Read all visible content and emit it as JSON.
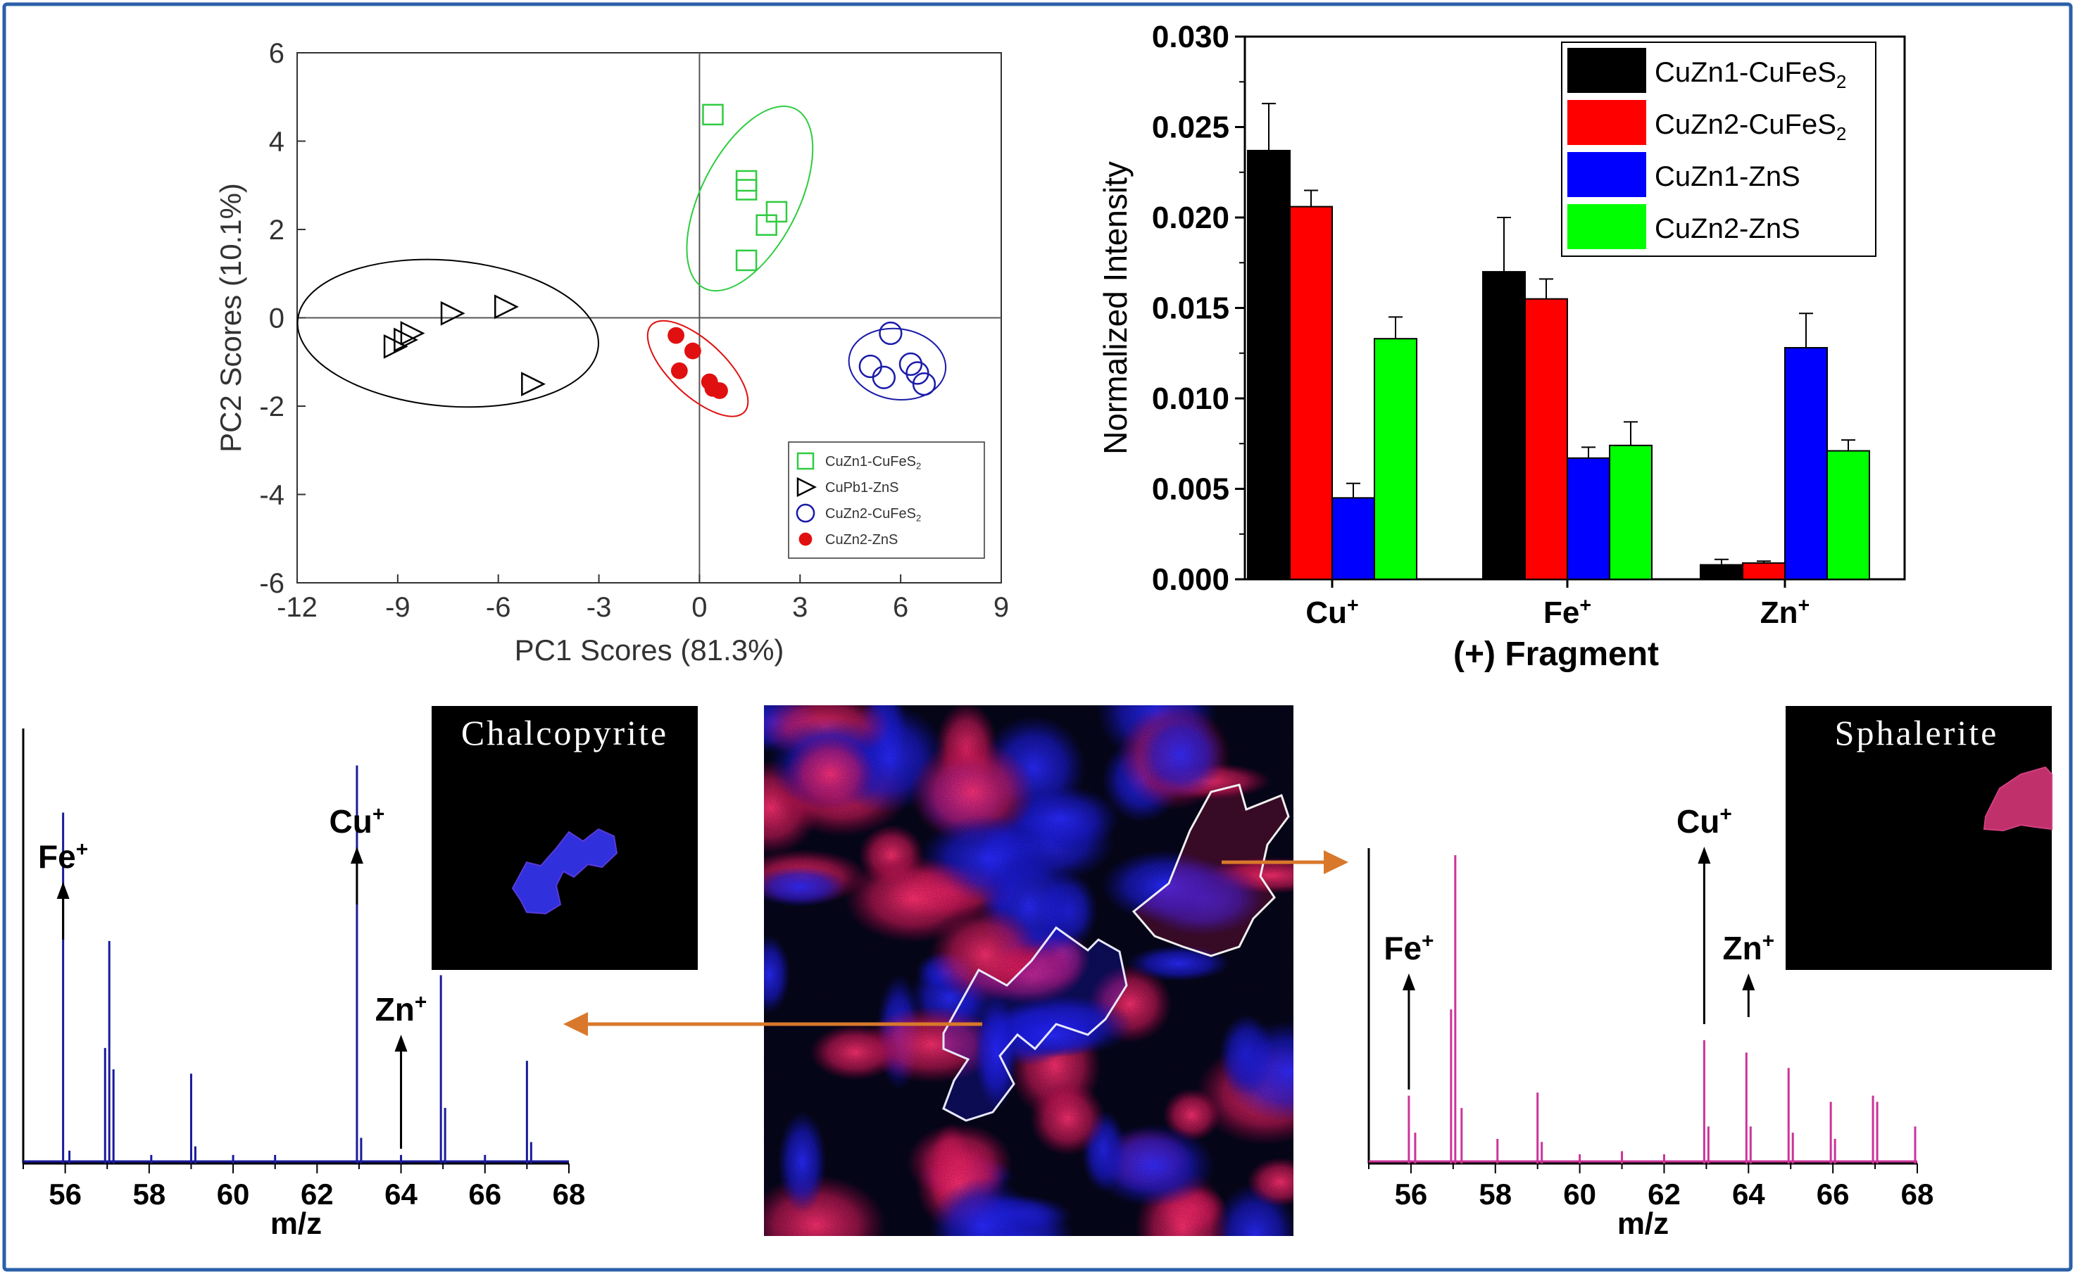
{
  "colors": {
    "frame": "#2b5fa8",
    "arrow": "#d9782b",
    "black": "#000000",
    "red": "#ff0000",
    "blue": "#0000ff",
    "green": "#00ff00",
    "pca_green": "#2ecc40",
    "pca_blue": "#1a1aaa",
    "pca_red": "#e01010",
    "spec_blue": "#1a1a9a",
    "spec_pink": "#cc3399"
  },
  "chart_data": [
    {
      "id": "pca",
      "type": "scatter",
      "xlabel": "PC1 Scores (81.3%)",
      "ylabel": "PC2 Scores (10.1%)",
      "xlim": [
        -12,
        9
      ],
      "ylim": [
        -6,
        6
      ],
      "xticks": [
        "-12",
        "-9",
        "-6",
        "-3",
        "0",
        "3",
        "6",
        "9"
      ],
      "yticks": [
        "6",
        "4",
        "2",
        "0",
        "-2",
        "-4",
        "-6"
      ],
      "legend_position": "bottom-right",
      "series": [
        {
          "name": "CuZn1-CuFeS",
          "subscript": "2",
          "marker": "square",
          "color": "#2ecc40",
          "points": [
            [
              0.4,
              4.6
            ],
            [
              1.4,
              3.1
            ],
            [
              1.4,
              2.9
            ],
            [
              2.3,
              2.4
            ],
            [
              2.0,
              2.1
            ],
            [
              1.4,
              1.3
            ]
          ],
          "ellipse": {
            "cx": 1.5,
            "cy": 2.7,
            "rx": 3.0,
            "ry": 1.1,
            "angle": 63
          }
        },
        {
          "name": "CuPb1-ZnS",
          "subscript": "",
          "marker": "triangle-right",
          "color": "#000000",
          "points": [
            [
              -5.8,
              0.25
            ],
            [
              -7.4,
              0.1
            ],
            [
              -8.6,
              -0.35
            ],
            [
              -8.8,
              -0.5
            ],
            [
              -9.1,
              -0.65
            ],
            [
              -5.0,
              -1.5
            ]
          ],
          "ellipse": {
            "cx": -7.5,
            "cy": -0.35,
            "rx": 4.5,
            "ry": 1.65,
            "angle": -5
          }
        },
        {
          "name": "CuZn2-CuFeS",
          "subscript": "2",
          "marker": "circle",
          "color": "#1a1aaa",
          "points": [
            [
              5.7,
              -0.35
            ],
            [
              5.1,
              -1.1
            ],
            [
              5.5,
              -1.35
            ],
            [
              6.3,
              -1.05
            ],
            [
              6.5,
              -1.25
            ],
            [
              6.7,
              -1.5
            ]
          ],
          "ellipse": {
            "cx": 5.9,
            "cy": -1.05,
            "rx": 1.45,
            "ry": 0.8,
            "angle": -8
          }
        },
        {
          "name": "CuZn2-ZnS",
          "subscript": "",
          "marker": "dot",
          "color": "#e01010",
          "points": [
            [
              -0.7,
              -0.4
            ],
            [
              -0.2,
              -0.75
            ],
            [
              -0.6,
              -1.2
            ],
            [
              0.3,
              -1.45
            ],
            [
              0.6,
              -1.65
            ],
            [
              0.4,
              -1.6
            ]
          ],
          "ellipse": {
            "cx": -0.05,
            "cy": -1.15,
            "rx": 1.9,
            "ry": 0.62,
            "angle": -43
          }
        }
      ]
    },
    {
      "id": "bars",
      "type": "bar",
      "ylabel": "Normalized Intensity",
      "xlabel": "(+) Fragment",
      "categories": [
        "Cu",
        "Fe",
        "Zn"
      ],
      "category_sup": "+",
      "ylim": [
        0,
        0.03
      ],
      "yticks": [
        "0.030",
        "0.025",
        "0.020",
        "0.015",
        "0.010",
        "0.005",
        "0.000"
      ],
      "legend_position": "top-right",
      "series": [
        {
          "name": "CuZn1-CuFeS",
          "subscript": "2",
          "color": "#000000",
          "values": [
            0.0237,
            0.017,
            0.0008
          ],
          "errors": [
            0.0026,
            0.003,
            0.0003
          ]
        },
        {
          "name": "CuZn2-CuFeS",
          "subscript": "2",
          "color": "#ff0000",
          "values": [
            0.0206,
            0.0155,
            0.0009
          ],
          "errors": [
            0.0009,
            0.0011,
            0.0001
          ]
        },
        {
          "name": "CuZn1-ZnS",
          "subscript": "",
          "color": "#0000ff",
          "values": [
            0.0045,
            0.0067,
            0.0128
          ],
          "errors": [
            0.0008,
            0.0006,
            0.0019
          ]
        },
        {
          "name": "CuZn2-ZnS",
          "subscript": "",
          "color": "#00ff00",
          "values": [
            0.0133,
            0.0074,
            0.0071
          ],
          "errors": [
            0.0012,
            0.0013,
            0.0006
          ]
        }
      ]
    },
    {
      "id": "spectrum_left",
      "type": "line",
      "title": "Chalcopyrite",
      "xlabel": "m/z",
      "xlim": [
        55,
        68
      ],
      "xticks": [
        "56",
        "58",
        "60",
        "62",
        "64",
        "66",
        "68"
      ],
      "color": "#1a1a9a",
      "peaks": [
        [
          55.95,
          0.82
        ],
        [
          56.1,
          0.03
        ],
        [
          56.95,
          0.27
        ],
        [
          57.05,
          0.52
        ],
        [
          57.15,
          0.22
        ],
        [
          58.05,
          0.02
        ],
        [
          59.0,
          0.21
        ],
        [
          59.1,
          0.04
        ],
        [
          60.0,
          0.02
        ],
        [
          61.0,
          0.02
        ],
        [
          62.95,
          0.93
        ],
        [
          63.05,
          0.06
        ],
        [
          64.0,
          0.02
        ],
        [
          64.95,
          0.44
        ],
        [
          65.05,
          0.13
        ],
        [
          66.0,
          0.02
        ],
        [
          67.0,
          0.24
        ],
        [
          67.1,
          0.05
        ]
      ],
      "annotations": [
        {
          "label": "Fe",
          "sup": "+",
          "x": 55.95
        },
        {
          "label": "Cu",
          "sup": "+",
          "x": 62.95
        },
        {
          "label": "Zn",
          "sup": "+",
          "x": 64.0
        }
      ]
    },
    {
      "id": "spectrum_right",
      "type": "line",
      "title": "Sphalerite",
      "xlabel": "m/z",
      "xlim": [
        55,
        68
      ],
      "xticks": [
        "56",
        "58",
        "60",
        "62",
        "64",
        "66",
        "68"
      ],
      "color": "#cc3399",
      "peaks": [
        [
          55.95,
          0.22
        ],
        [
          56.1,
          0.1
        ],
        [
          56.95,
          0.5
        ],
        [
          57.05,
          1.0
        ],
        [
          57.2,
          0.18
        ],
        [
          58.05,
          0.08
        ],
        [
          59.0,
          0.23
        ],
        [
          59.1,
          0.07
        ],
        [
          60.0,
          0.03
        ],
        [
          61.0,
          0.04
        ],
        [
          62.0,
          0.03
        ],
        [
          62.95,
          0.4
        ],
        [
          63.05,
          0.12
        ],
        [
          63.95,
          0.36
        ],
        [
          64.05,
          0.12
        ],
        [
          64.95,
          0.31
        ],
        [
          65.05,
          0.1
        ],
        [
          65.95,
          0.2
        ],
        [
          66.05,
          0.08
        ],
        [
          66.95,
          0.22
        ],
        [
          67.05,
          0.2
        ],
        [
          67.95,
          0.12
        ]
      ],
      "annotations": [
        {
          "label": "Fe",
          "sup": "+",
          "x": 55.95
        },
        {
          "label": "Cu",
          "sup": "+",
          "x": 62.95
        },
        {
          "label": "Zn",
          "sup": "+",
          "x": 64.0
        }
      ]
    }
  ]
}
